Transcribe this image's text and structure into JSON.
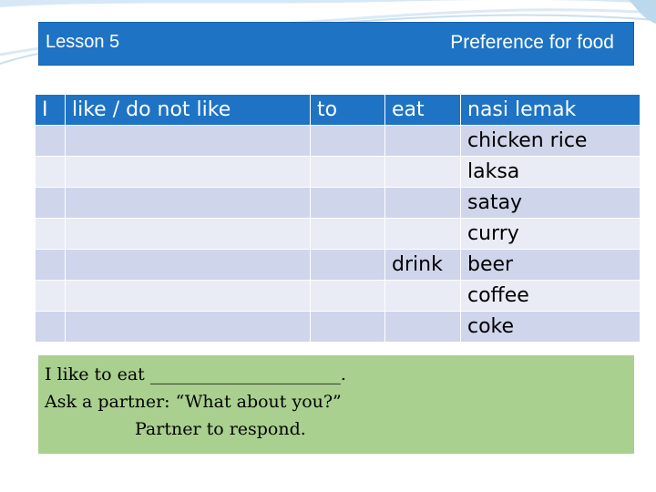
{
  "header": {
    "lesson": "Lesson 5",
    "topic": "Preference for food"
  },
  "table": {
    "rows": [
      [
        "I",
        "like / do not like",
        "to",
        "eat",
        "nasi lemak"
      ],
      [
        "",
        "",
        "",
        "",
        "chicken rice"
      ],
      [
        "",
        "",
        "",
        "",
        "laksa"
      ],
      [
        "",
        "",
        "",
        "",
        "satay"
      ],
      [
        "",
        "",
        "",
        "",
        "curry"
      ],
      [
        "",
        "",
        "",
        "drink",
        "beer"
      ],
      [
        "",
        "",
        "",
        "",
        "coffee"
      ],
      [
        "",
        "",
        "",
        "",
        "coke"
      ]
    ]
  },
  "note": {
    "line1": "I like to eat ______________________.",
    "line2": "Ask a partner: “What  about you?”",
    "line3": "Partner  to respond."
  },
  "colors": {
    "header_blue": "#1e73c4",
    "row_band": "#cfd5ea",
    "row_light": "#e9ebf5",
    "note_green": "#a9d08e"
  }
}
